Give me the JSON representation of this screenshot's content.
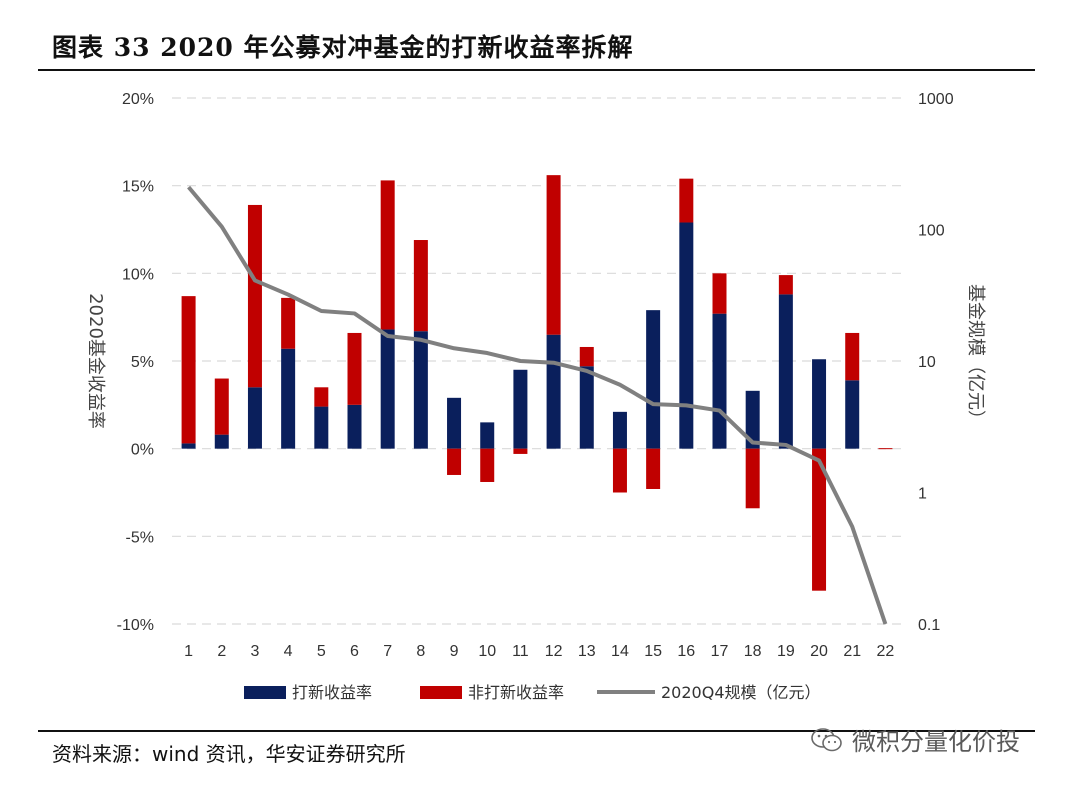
{
  "header": {
    "title": "图表 33 2020 年公募对冲基金的打新收益率拆解"
  },
  "footer": {
    "source": "资料来源：wind 资讯，华安证券研究所"
  },
  "watermark": {
    "text": "微积分量化价投",
    "icon": "wechat-icon"
  },
  "colors": {
    "ipo": "#0a1f5c",
    "non_ipo": "#c00000",
    "scale": "#808080",
    "grid": "#d9d9d9"
  },
  "chart_data": {
    "type": "bar",
    "stacked": true,
    "categories": [
      "1",
      "2",
      "3",
      "4",
      "5",
      "6",
      "7",
      "8",
      "9",
      "10",
      "11",
      "12",
      "13",
      "14",
      "15",
      "16",
      "17",
      "18",
      "19",
      "20",
      "21",
      "22"
    ],
    "series": [
      {
        "name": "打新收益率",
        "axis": "left",
        "unit": "%",
        "values": [
          0.3,
          0.8,
          3.5,
          5.7,
          2.4,
          2.5,
          6.8,
          6.7,
          2.9,
          1.5,
          4.5,
          6.5,
          4.7,
          2.1,
          7.9,
          12.9,
          7.7,
          3.3,
          8.8,
          5.1,
          3.9,
          0.0
        ]
      },
      {
        "name": "非打新收益率",
        "axis": "left",
        "unit": "%",
        "values": [
          8.4,
          3.2,
          10.4,
          2.9,
          1.1,
          4.1,
          8.5,
          5.2,
          -1.5,
          -1.9,
          -0.3,
          9.1,
          1.1,
          -2.5,
          -2.3,
          2.5,
          2.3,
          -3.4,
          1.1,
          -8.1,
          2.7,
          0.0
        ]
      },
      {
        "name": "2020Q4规模（亿元）",
        "axis": "right",
        "type": "line",
        "values": [
          210,
          105,
          41,
          32,
          24,
          23,
          15.5,
          14.5,
          12.5,
          11.5,
          10.0,
          9.7,
          8.4,
          6.6,
          4.7,
          4.6,
          4.2,
          2.4,
          2.3,
          1.75,
          0.55,
          0.1
        ]
      }
    ],
    "left_axis": {
      "title": "2020基金收益率",
      "ticks": [
        "20%",
        "15%",
        "10%",
        "5%",
        "0%",
        "-5%",
        "-10%"
      ],
      "min": -10,
      "max": 20
    },
    "right_axis": {
      "title": "基金规模（亿元）",
      "ticks": [
        "1000",
        "100",
        "10",
        "1",
        "0.1"
      ],
      "scale": "log",
      "min": 0.1,
      "max": 1000
    },
    "grid": true,
    "legend_position": "bottom"
  }
}
